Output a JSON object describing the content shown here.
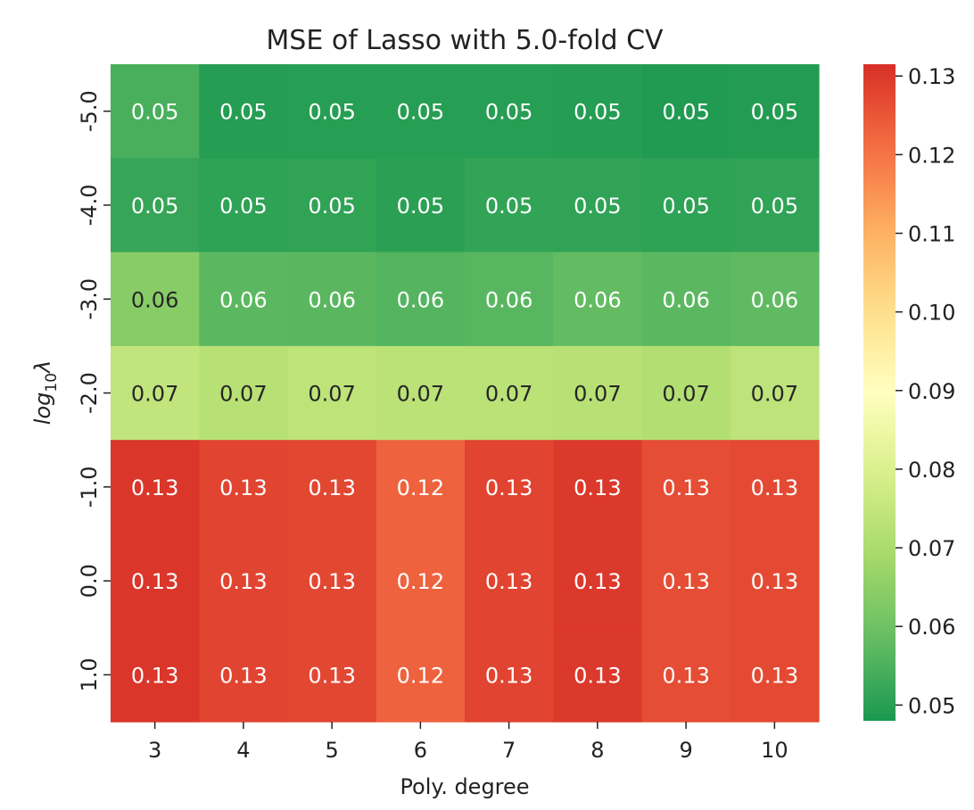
{
  "chart_data": {
    "type": "heatmap",
    "title": "MSE of Lasso with 5.0-fold CV",
    "xlabel": "Poly. degree",
    "ylabel_base": "log",
    "ylabel_sub": "10",
    "ylabel_symbol": "λ",
    "x_categories": [
      "3",
      "4",
      "5",
      "6",
      "7",
      "8",
      "9",
      "10"
    ],
    "y_categories": [
      "-5.0",
      "-4.0",
      "-3.0",
      "-2.0",
      "-1.0",
      "0.0",
      "1.0"
    ],
    "values": [
      [
        0.0545,
        0.0495,
        0.0497,
        0.0496,
        0.0497,
        0.0495,
        0.0488,
        0.0492
      ],
      [
        0.0518,
        0.0508,
        0.051,
        0.0503,
        0.0513,
        0.0512,
        0.0508,
        0.0511
      ],
      [
        0.064,
        0.057,
        0.0568,
        0.056,
        0.0566,
        0.058,
        0.057,
        0.0575
      ],
      [
        0.0745,
        0.0725,
        0.0735,
        0.073,
        0.073,
        0.0725,
        0.0715,
        0.0738
      ],
      [
        0.1305,
        0.128,
        0.1275,
        0.123,
        0.128,
        0.13,
        0.1265,
        0.127
      ],
      [
        0.1305,
        0.128,
        0.1275,
        0.123,
        0.128,
        0.13,
        0.1265,
        0.127
      ],
      [
        0.1305,
        0.128,
        0.1275,
        0.123,
        0.128,
        0.13,
        0.1265,
        0.127
      ]
    ],
    "annotations": [
      [
        "0.05",
        "0.05",
        "0.05",
        "0.05",
        "0.05",
        "0.05",
        "0.05",
        "0.05"
      ],
      [
        "0.05",
        "0.05",
        "0.05",
        "0.05",
        "0.05",
        "0.05",
        "0.05",
        "0.05"
      ],
      [
        "0.06",
        "0.06",
        "0.06",
        "0.06",
        "0.06",
        "0.06",
        "0.06",
        "0.06"
      ],
      [
        "0.07",
        "0.07",
        "0.07",
        "0.07",
        "0.07",
        "0.07",
        "0.07",
        "0.07"
      ],
      [
        "0.13",
        "0.13",
        "0.13",
        "0.12",
        "0.13",
        "0.13",
        "0.13",
        "0.13"
      ],
      [
        "0.13",
        "0.13",
        "0.13",
        "0.12",
        "0.13",
        "0.13",
        "0.13",
        "0.13"
      ],
      [
        "0.13",
        "0.13",
        "0.13",
        "0.12",
        "0.13",
        "0.13",
        "0.13",
        "0.13"
      ]
    ],
    "colorbar": {
      "colormap": "RdYlGn_r",
      "vmin": 0.048,
      "vmax": 0.1315,
      "ticks": [
        0.05,
        0.06,
        0.07,
        0.08,
        0.09,
        0.1,
        0.11,
        0.12,
        0.13
      ],
      "tick_labels": [
        "0.05",
        "0.06",
        "0.07",
        "0.08",
        "0.09",
        "0.10",
        "0.11",
        "0.12",
        "0.13"
      ]
    },
    "colors": {
      "light_text": "#ffffff",
      "dark_text": "#262626",
      "tick_color": "#222222"
    }
  }
}
